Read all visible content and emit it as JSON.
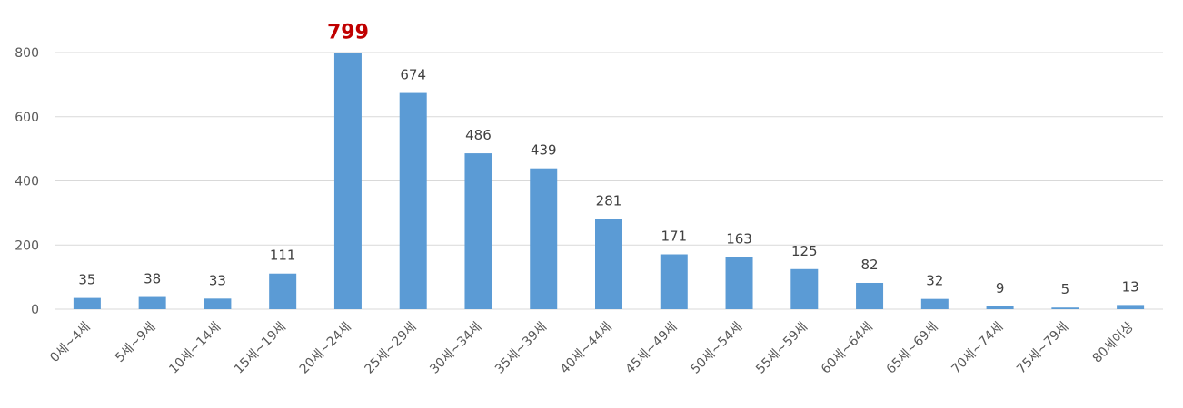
{
  "chart_data": {
    "type": "bar",
    "categories": [
      "0세~4세",
      "5세~9세",
      "10세~14세",
      "15세~19세",
      "20세~24세",
      "25세~29세",
      "30세~34세",
      "35세~39세",
      "40세~44세",
      "45세~49세",
      "50세~54세",
      "55세~59세",
      "60세~64세",
      "65세~69세",
      "70세~74세",
      "75세~79세",
      "80세이상"
    ],
    "values": [
      35,
      38,
      33,
      111,
      799,
      674,
      486,
      439,
      281,
      171,
      163,
      125,
      82,
      32,
      9,
      5,
      13
    ],
    "ylim": [
      0,
      800
    ],
    "yticks": [
      0,
      200,
      400,
      600,
      800
    ],
    "grid": true,
    "legend": "none",
    "highlight_index": 4,
    "colors": {
      "bar": "#5b9bd5",
      "highlight_label": "#c00000",
      "grid": "#d9d9d9",
      "text": "#595959"
    }
  }
}
